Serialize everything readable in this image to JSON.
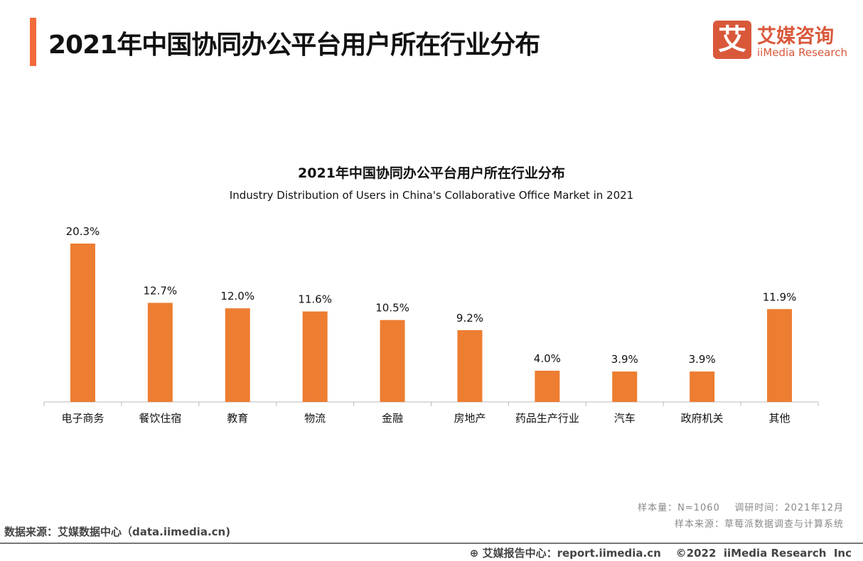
{
  "header": {
    "title": "2021年中国协同办公平台用户所在行业分布"
  },
  "logo": {
    "glyph": "艾",
    "cn": "艾媒咨询",
    "en": "iiMedia Research"
  },
  "colors": {
    "accent": "#f26b3a",
    "bar": "#ed7d31",
    "brand": "#d9583a"
  },
  "chart_data": {
    "type": "bar",
    "title": "2021年中国协同办公平台用户所在行业分布",
    "subtitle": "Industry Distribution of Users in China's Collaborative Office Market in 2021",
    "categories": [
      "电子商务",
      "餐饮住宿",
      "教育",
      "物流",
      "金融",
      "房地产",
      "药品生产行业",
      "汽车",
      "政府机关",
      "其他"
    ],
    "values": [
      20.3,
      12.7,
      12.0,
      11.6,
      10.5,
      9.2,
      4.0,
      3.9,
      3.9,
      11.9
    ],
    "labels": [
      "20.3%",
      "12.7%",
      "12.0%",
      "11.6%",
      "10.5%",
      "9.2%",
      "4.0%",
      "3.9%",
      "3.9%",
      "11.9%"
    ],
    "unit": "%",
    "ylim": [
      0,
      22
    ],
    "grid": false
  },
  "meta": {
    "line1": "样本量：N=1060    调研时间：2021年12月",
    "line2": "样本来源：草莓派数据调查与计算系统"
  },
  "source": "数据来源：艾媒数据中心（data.iimedia.cn)",
  "footer": {
    "icon": "globe-icon",
    "text": "艾媒报告中心：report.iimedia.cn    ©2022  iiMedia Research  Inc"
  }
}
